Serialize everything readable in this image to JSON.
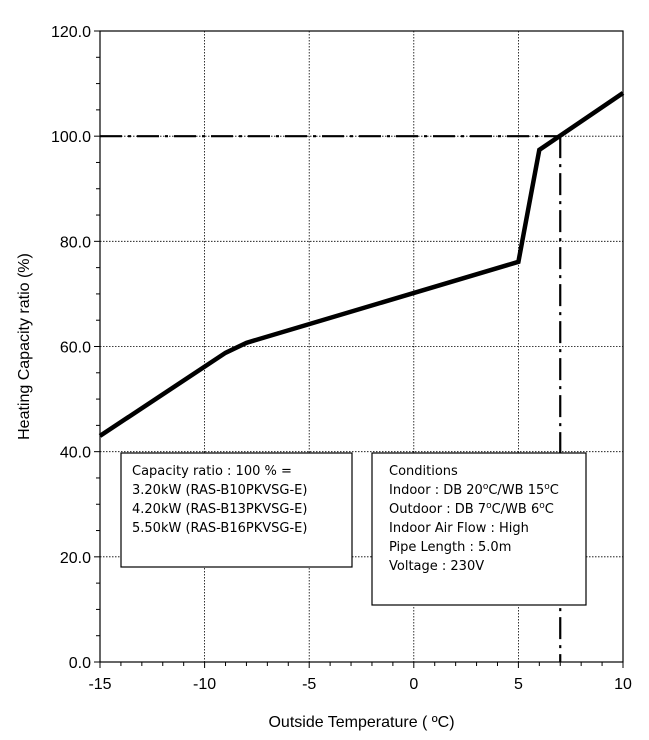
{
  "chart_data": {
    "type": "line",
    "xlabel": "Outside Temperature ( ºC)",
    "ylabel": "Heating Capacity ratio (%)",
    "xlim": [
      -15,
      10
    ],
    "ylim": [
      0,
      120
    ],
    "x_ticks": [
      -15,
      -10,
      -5,
      0,
      5,
      10
    ],
    "y_ticks": [
      0,
      20,
      40,
      60,
      80,
      100,
      120
    ],
    "x_tick_labels": [
      "-15",
      "-10",
      "-5",
      "0",
      "5",
      "10"
    ],
    "y_tick_labels": [
      "0.0",
      "20.0",
      "40.0",
      "60.0",
      "80.0",
      "100.0",
      "120.0"
    ],
    "grid": "dotted",
    "series": [
      {
        "style": "solid-thick",
        "x": [
          -15,
          -9,
          -8,
          5,
          6,
          10
        ],
        "y": [
          43,
          58.8,
          60.7,
          76.1,
          97.4,
          108.2
        ]
      }
    ],
    "reference_lines": [
      {
        "orientation": "horizontal",
        "style": "dash-dot",
        "y": 100,
        "x_from": -15,
        "x_to": 7
      },
      {
        "orientation": "vertical",
        "style": "dash-dot",
        "x": 7,
        "y_from": 0,
        "y_to": 100
      }
    ],
    "annotations": [
      {
        "id": "capacity-box",
        "lines": [
          "Capacity ratio : 100 % =",
          "3.20kW (RAS-B10PKVSG-E)",
          "4.20kW (RAS-B13PKVSG-E)",
          "5.50kW (RAS-B16PKVSG-E)"
        ]
      },
      {
        "id": "conditions-box",
        "lines": [
          {
            "text": "Conditions"
          },
          {
            "text": "Indoor : DB 20",
            "sup": "o",
            "rest": "C/WB 15",
            "sup2": "o",
            "rest2": "C"
          },
          {
            "text": "Outdoor : DB 7",
            "sup": "o",
            "rest": "C/WB 6",
            "sup2": "o",
            "rest2": "C"
          },
          {
            "text": "Indoor Air Flow : High"
          },
          {
            "text": "Pipe Length : 5.0m"
          },
          {
            "text": "Voltage : 230V"
          }
        ]
      }
    ]
  }
}
